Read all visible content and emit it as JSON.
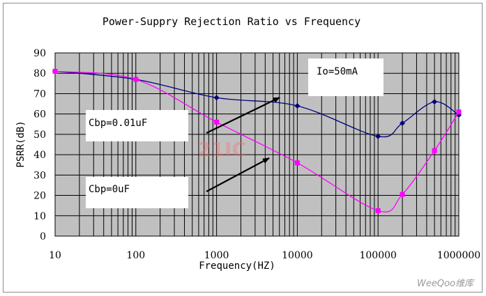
{
  "chart_data": {
    "type": "line",
    "title": "Power-Suppry Rejection Ratio vs Frequency",
    "xlabel": "Frequency(HZ)",
    "ylabel": "PSRR(dB)",
    "x_scale": "log",
    "xlim": [
      10,
      1000000
    ],
    "ylim": [
      0,
      90
    ],
    "x_tick_labels": [
      "10",
      "100",
      "1000",
      "10000",
      "100000",
      "1000000"
    ],
    "y_tick_labels": [
      "0",
      "10",
      "20",
      "30",
      "40",
      "50",
      "60",
      "70",
      "80",
      "90"
    ],
    "grid": true,
    "series": [
      {
        "color": "#000080",
        "marker": "diamond",
        "x": [
          10,
          100,
          1000,
          10000,
          100000,
          200000,
          500000,
          1000000
        ],
        "y": [
          81,
          77,
          68,
          64,
          49,
          55.5,
          66,
          59.5
        ]
      },
      {
        "color": "#ff00ff",
        "marker": "square",
        "x": [
          10,
          100,
          1000,
          10000,
          100000,
          200000,
          500000,
          1000000
        ],
        "y": [
          81,
          77,
          56,
          36,
          12.5,
          20.5,
          42,
          61
        ]
      }
    ],
    "annotations": [
      {
        "id": "io",
        "text": "Io=50mA"
      },
      {
        "id": "cbp1",
        "text": "Cbp=0.01uF"
      },
      {
        "id": "cbp0",
        "text": "Cbp=0uF"
      }
    ]
  },
  "watermark": {
    "center": "21IC",
    "corner": "WeeQoo维库"
  },
  "colors": {
    "plot_background": "#c0c0c0",
    "grid": "#000000"
  }
}
